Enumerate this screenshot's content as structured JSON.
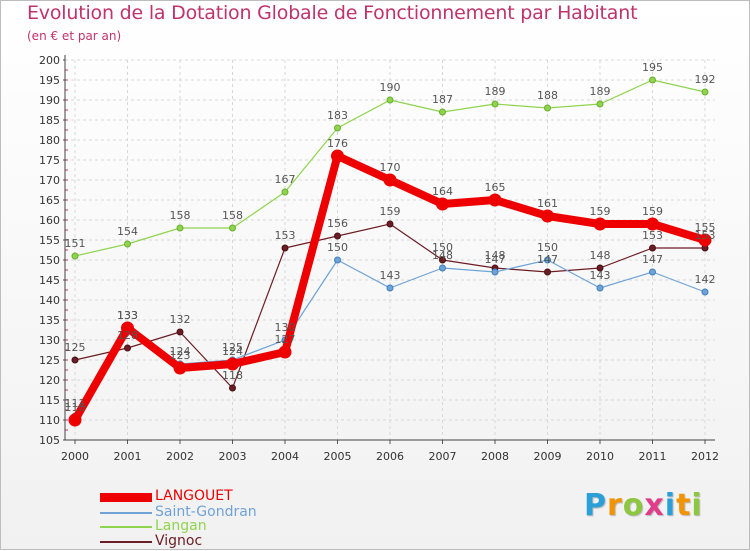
{
  "header": {
    "title": "Evolution de la Dotation Globale de Fonctionnement par Habitant",
    "subtitle": "(en € et par an)"
  },
  "chart_data": {
    "type": "line",
    "x": [
      2000,
      2001,
      2002,
      2003,
      2004,
      2005,
      2006,
      2007,
      2008,
      2009,
      2010,
      2011,
      2012
    ],
    "ylim": [
      105,
      200
    ],
    "yticks": [
      105,
      110,
      115,
      120,
      125,
      130,
      135,
      140,
      145,
      150,
      155,
      160,
      165,
      170,
      175,
      180,
      185,
      190,
      195,
      200
    ],
    "grid": true,
    "legend_position": "bottom-left",
    "series": [
      {
        "name": "LANGOUET",
        "color": "#ee0000",
        "values": [
          110,
          133,
          123,
          124,
          127,
          176,
          170,
          164,
          165,
          161,
          159,
          159,
          155
        ],
        "labels": [
          "110",
          "133",
          "123",
          "124",
          "127",
          "176",
          "170",
          "164",
          "165",
          "161",
          "159",
          "159",
          "155"
        ]
      },
      {
        "name": "Saint-Gondran",
        "color": "#6fa3d6",
        "values": [
          111,
          133,
          124,
          125,
          130,
          150,
          143,
          148,
          147,
          150,
          143,
          147,
          142
        ],
        "labels": [
          "111",
          "133",
          "124",
          "125",
          "130",
          "150",
          "143",
          "148",
          "147",
          "150",
          "143",
          "147",
          "142"
        ]
      },
      {
        "name": "Langan",
        "color": "#8fd44e",
        "values": [
          151,
          154,
          158,
          158,
          167,
          183,
          190,
          187,
          189,
          188,
          189,
          195,
          192
        ],
        "labels": [
          "151",
          "154",
          "158",
          "158",
          "167",
          "183",
          "190",
          "187",
          "189",
          "188",
          "189",
          "195",
          "192"
        ]
      },
      {
        "name": "Vignoc",
        "color": "#6b1d24",
        "values": [
          125,
          128,
          132,
          118,
          153,
          156,
          159,
          150,
          148,
          147,
          148,
          153,
          153
        ],
        "labels": [
          "125",
          "128",
          "132",
          "118",
          "153",
          "156",
          "159",
          "150",
          "148",
          "147",
          "148",
          "153",
          "153"
        ]
      }
    ]
  },
  "logo": {
    "letters": [
      "P",
      "r",
      "o",
      "x",
      "i",
      "t",
      "i"
    ],
    "colors": [
      "#2a9fd8",
      "#f29400",
      "#8dc63f",
      "#e03c8a",
      "#2a9fd8",
      "#f29400",
      "#8dc63f"
    ]
  }
}
